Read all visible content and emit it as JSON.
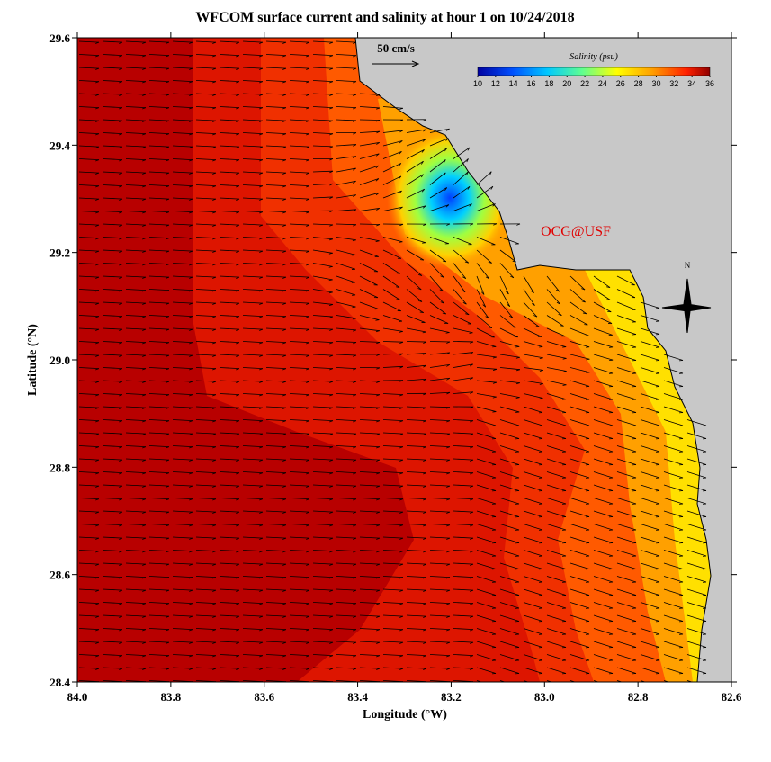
{
  "map": {
    "title": "WFCOM surface current and salinity at hour 1 on 10/24/2018",
    "x_label": "Longitude (°W)",
    "y_label": "Latitude (°N)",
    "xlim": [
      84,
      82.6
    ],
    "ylim": [
      28.4,
      29.6
    ],
    "xticks": [
      {
        "value": 84,
        "label": "84.0"
      },
      83.8,
      83.6,
      83.4,
      83.2,
      {
        "value": 83,
        "label": "83.0"
      },
      82.8,
      82.6
    ],
    "yticks": [
      28.4,
      28.6,
      28.8,
      {
        "value": 29,
        "label": "29.0"
      },
      29.2,
      29.4,
      29.6
    ],
    "colorbar": {
      "title": "Salinity (psu)",
      "lim": [
        10,
        36
      ],
      "ticks": [
        10,
        12,
        14,
        16,
        18,
        20,
        22,
        24,
        26,
        28,
        30,
        32,
        34,
        36
      ]
    },
    "scale_label": "50 cm/s",
    "credit": "OCG@USF",
    "north_label": "N"
  }
}
